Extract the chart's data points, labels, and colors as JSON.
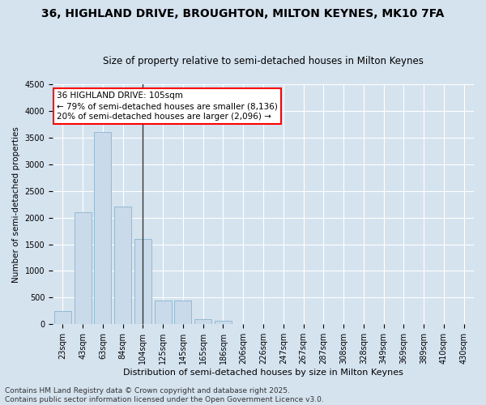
{
  "title1": "36, HIGHLAND DRIVE, BROUGHTON, MILTON KEYNES, MK10 7FA",
  "title2": "Size of property relative to semi-detached houses in Milton Keynes",
  "xlabel": "Distribution of semi-detached houses by size in Milton Keynes",
  "ylabel": "Number of semi-detached properties",
  "categories": [
    "23sqm",
    "43sqm",
    "63sqm",
    "84sqm",
    "104sqm",
    "125sqm",
    "145sqm",
    "165sqm",
    "186sqm",
    "206sqm",
    "226sqm",
    "247sqm",
    "267sqm",
    "287sqm",
    "308sqm",
    "328sqm",
    "349sqm",
    "369sqm",
    "389sqm",
    "410sqm",
    "430sqm"
  ],
  "values": [
    250,
    2100,
    3600,
    2200,
    1600,
    450,
    450,
    100,
    60,
    10,
    5,
    2,
    1,
    0,
    0,
    0,
    0,
    0,
    0,
    0,
    0
  ],
  "bar_color": "#c9daea",
  "bar_edge_color": "#8ab4cc",
  "annotation_text": "36 HIGHLAND DRIVE: 105sqm\n← 79% of semi-detached houses are smaller (8,136)\n20% of semi-detached houses are larger (2,096) →",
  "vline_x": 4.5,
  "vline_color": "#333333",
  "ylim": [
    0,
    4500
  ],
  "yticks": [
    0,
    500,
    1000,
    1500,
    2000,
    2500,
    3000,
    3500,
    4000,
    4500
  ],
  "bg_color": "#d5e3ef",
  "plot_bg_color": "#d5e3ef",
  "footer": "Contains HM Land Registry data © Crown copyright and database right 2025.\nContains public sector information licensed under the Open Government Licence v3.0.",
  "title1_fontsize": 10,
  "title2_fontsize": 8.5,
  "annotation_fontsize": 7.5,
  "footer_fontsize": 6.5,
  "grid_color": "#ffffff",
  "ylabel_fontsize": 7.5,
  "xlabel_fontsize": 8,
  "tick_fontsize": 7
}
